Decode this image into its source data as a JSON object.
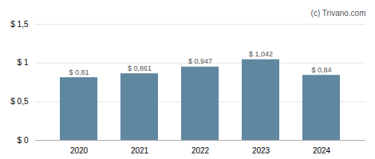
{
  "chart_data": {
    "type": "bar",
    "categories": [
      "2020",
      "2021",
      "2022",
      "2023",
      "2024"
    ],
    "values": [
      0.81,
      0.861,
      0.947,
      1.042,
      0.84
    ],
    "value_labels": [
      "$ 0,81",
      "$ 0,861",
      "$ 0,947",
      "$ 1,042",
      "$ 0,84"
    ],
    "color": "#5f87a0",
    "ylim": [
      0,
      1.5
    ],
    "yticks": [
      {
        "value": 0,
        "label": "$ 0"
      },
      {
        "value": 0.5,
        "label": "$ 0,5"
      },
      {
        "value": 1.0,
        "label": "$ 1"
      },
      {
        "value": 1.5,
        "label": "$ 1,5"
      }
    ],
    "grid": true,
    "data_labels": true,
    "annotations": [
      "(c) Trivano.com"
    ]
  }
}
